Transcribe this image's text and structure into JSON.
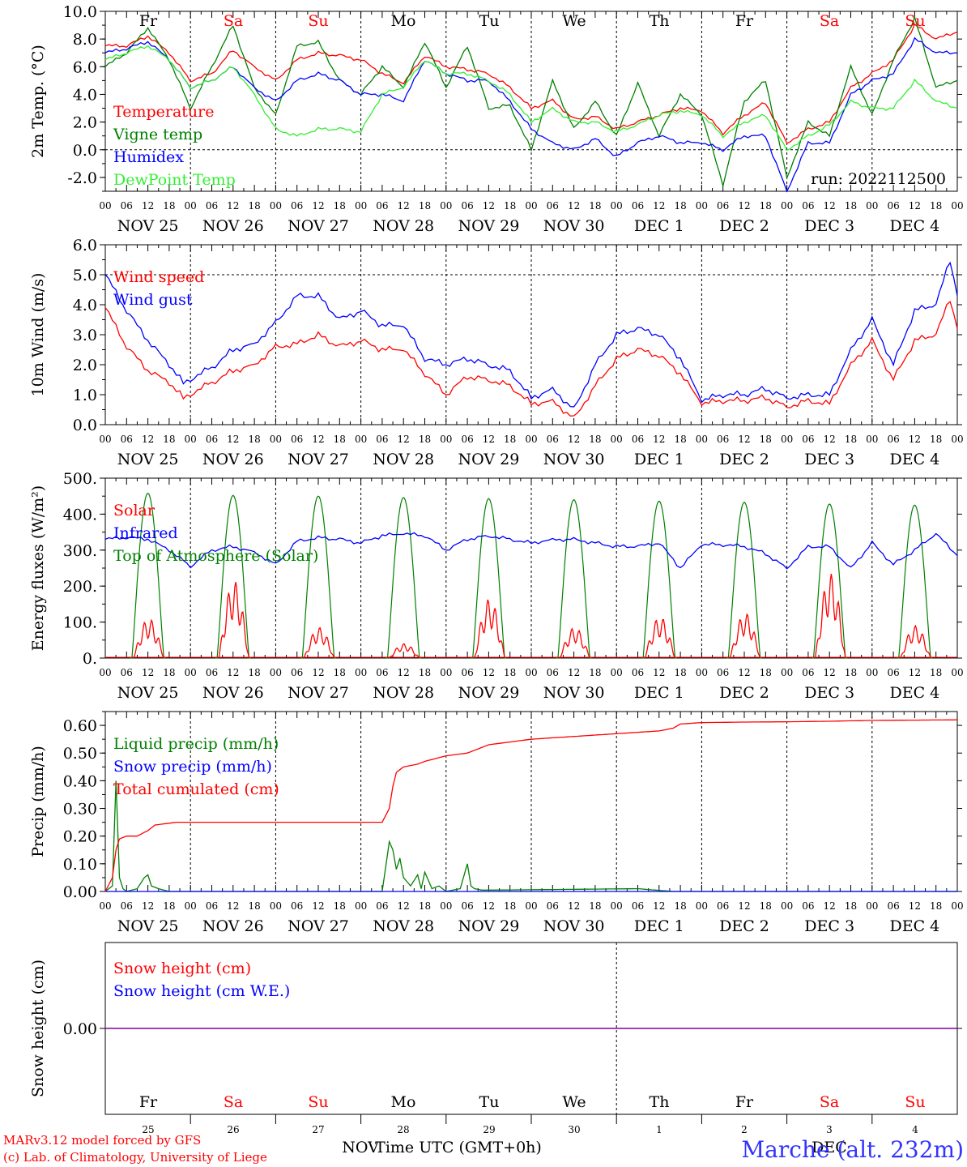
{
  "colors": {
    "red": "#ff0000",
    "green": "#008000",
    "blue": "#0000ff",
    "lightgreen": "#33ee33",
    "purple": "#8000a0",
    "station": "#3333ff",
    "footer": "#ff0000"
  },
  "day_names": [
    "Fr",
    "Sa",
    "Su",
    "Mo",
    "Tu",
    "We",
    "Th",
    "Fr",
    "Sa",
    "Su"
  ],
  "day_name_colors": [
    "#000000",
    "#ff0000",
    "#ff0000",
    "#000000",
    "#000000",
    "#000000",
    "#000000",
    "#000000",
    "#ff0000",
    "#ff0000"
  ],
  "day_labels": [
    "NOV 25",
    "NOV 26",
    "NOV 27",
    "NOV 28",
    "NOV 29",
    "NOV 30",
    "DEC  1",
    "DEC  2",
    "DEC  3",
    "DEC  4"
  ],
  "hour_labels": [
    "00",
    "06",
    "12",
    "18"
  ],
  "last_hour_label": "00",
  "bottom_day_numbers": [
    "25",
    "26",
    "27",
    "28",
    "29",
    "30",
    "1",
    "2",
    "3",
    "4"
  ],
  "bottom_months": [
    "NOV",
    "DEC"
  ],
  "run_label": "run: 2022112500",
  "footer": {
    "model": "MARv3.12 model forced by GFS",
    "lab": "(c) Lab. of Climatology, University of Liege",
    "xlabel": "Time UTC (GMT+0h)",
    "station": "Marche (alt. 232m)"
  },
  "chart_data": [
    {
      "type": "line",
      "ylabel": "2m Temp. (°C)",
      "ylim": [
        -3,
        10
      ],
      "yticks": [
        "-2.0",
        "0.0",
        "2.0",
        "4.0",
        "6.0",
        "8.0",
        "10.0"
      ],
      "ytick_values": [
        -2,
        0,
        2,
        4,
        6,
        8,
        10
      ],
      "x_unit": "hours since 25 Nov 2022 00 UTC",
      "xlim": [
        0,
        240
      ],
      "series": [
        {
          "name": "Temperature",
          "color": "#ff0000",
          "x": [
            0,
            6,
            12,
            18,
            24,
            30,
            36,
            42,
            48,
            54,
            60,
            66,
            72,
            78,
            84,
            90,
            96,
            102,
            108,
            114,
            120,
            126,
            132,
            138,
            144,
            150,
            156,
            162,
            168,
            174,
            180,
            186,
            192,
            198,
            204,
            210,
            216,
            222,
            228,
            234,
            240
          ],
          "y": [
            7.5,
            7.5,
            8.2,
            7.0,
            5.0,
            5.5,
            7.2,
            6.0,
            5.0,
            6.5,
            7.0,
            6.8,
            6.5,
            5.5,
            4.8,
            6.8,
            6.0,
            5.8,
            5.5,
            4.5,
            3.0,
            3.6,
            2.2,
            2.4,
            1.5,
            2.0,
            2.5,
            3.0,
            2.8,
            1.2,
            2.5,
            3.4,
            0.5,
            1.5,
            2.0,
            4.5,
            5.5,
            6.5,
            9.0,
            8.0,
            8.5
          ]
        },
        {
          "name": "Vigne temp",
          "color": "#008000",
          "x": [
            0,
            6,
            12,
            18,
            24,
            30,
            36,
            42,
            48,
            54,
            60,
            66,
            72,
            78,
            84,
            90,
            96,
            102,
            108,
            114,
            120,
            126,
            132,
            138,
            144,
            150,
            156,
            162,
            168,
            174,
            180,
            186,
            192,
            198,
            204,
            210,
            216,
            222,
            228,
            234,
            240
          ],
          "y": [
            6.0,
            7.0,
            8.8,
            6.5,
            3.0,
            6.0,
            9.0,
            4.5,
            2.5,
            7.5,
            7.8,
            5.0,
            4.0,
            6.0,
            4.5,
            7.8,
            4.5,
            7.5,
            3.0,
            3.2,
            0.0,
            5.0,
            1.5,
            3.5,
            1.0,
            4.8,
            1.0,
            4.0,
            2.5,
            -2.5,
            3.5,
            5.0,
            -2.0,
            2.0,
            1.0,
            6.0,
            2.5,
            6.5,
            9.5,
            4.5,
            5.0
          ]
        },
        {
          "name": "Humidex",
          "color": "#0000ff",
          "x": [
            0,
            6,
            12,
            18,
            24,
            30,
            36,
            42,
            48,
            54,
            60,
            66,
            72,
            78,
            84,
            90,
            96,
            102,
            108,
            114,
            120,
            126,
            132,
            138,
            144,
            150,
            156,
            162,
            168,
            174,
            180,
            186,
            192,
            198,
            204,
            210,
            216,
            222,
            228,
            234,
            240
          ],
          "y": [
            7.0,
            7.3,
            7.8,
            6.5,
            4.5,
            5.0,
            6.0,
            4.5,
            3.5,
            5.0,
            5.5,
            5.0,
            4.0,
            4.0,
            3.5,
            6.5,
            5.5,
            5.0,
            5.0,
            3.5,
            1.5,
            0.5,
            0.0,
            0.8,
            -0.5,
            0.5,
            1.0,
            0.5,
            0.5,
            0.0,
            1.0,
            1.0,
            -3.0,
            0.5,
            0.5,
            4.0,
            5.0,
            5.5,
            8.0,
            7.0,
            7.0
          ]
        },
        {
          "name": "DewPoint Temp",
          "color": "#33ee33",
          "x": [
            0,
            6,
            12,
            18,
            24,
            30,
            36,
            42,
            48,
            54,
            60,
            66,
            72,
            78,
            84,
            90,
            96,
            102,
            108,
            114,
            120,
            126,
            132,
            138,
            144,
            150,
            156,
            162,
            168,
            174,
            180,
            186,
            192,
            198,
            204,
            210,
            216,
            222,
            228,
            234,
            240
          ],
          "y": [
            6.5,
            7.0,
            7.5,
            6.5,
            4.5,
            5.0,
            6.0,
            4.0,
            1.5,
            1.0,
            1.5,
            1.5,
            1.3,
            4.0,
            4.5,
            6.5,
            5.5,
            5.5,
            5.0,
            4.0,
            2.0,
            3.0,
            2.0,
            2.0,
            1.3,
            1.8,
            2.5,
            2.8,
            2.5,
            1.0,
            2.0,
            2.5,
            0.0,
            1.0,
            1.8,
            3.5,
            3.0,
            3.0,
            5.0,
            3.5,
            3.0
          ]
        }
      ],
      "text_color": {
        "Temperature": "#ff0000",
        "Vigne temp": "#008000",
        "Humidex": "#0000ff",
        "DewPoint Temp": "#33ee33"
      }
    },
    {
      "type": "line",
      "ylabel": "10m Wind (m/s)",
      "ylim": [
        0,
        6
      ],
      "yticks": [
        "0.0",
        "1.0",
        "2.0",
        "3.0",
        "4.0",
        "5.0",
        "6.0"
      ],
      "ytick_values": [
        0,
        1,
        2,
        3,
        4,
        5,
        6
      ],
      "x_unit": "hours since 25 Nov 2022 00 UTC",
      "xlim": [
        0,
        240
      ],
      "series": [
        {
          "name": "Wind speed",
          "color": "#ff0000",
          "x": [
            0,
            6,
            12,
            18,
            22,
            30,
            36,
            42,
            48,
            54,
            60,
            66,
            72,
            78,
            84,
            90,
            96,
            102,
            108,
            114,
            120,
            126,
            132,
            138,
            144,
            150,
            156,
            162,
            168,
            174,
            180,
            186,
            192,
            198,
            204,
            210,
            216,
            222,
            228,
            234,
            238,
            240
          ],
          "y": [
            3.9,
            2.6,
            1.8,
            1.4,
            0.9,
            1.4,
            1.8,
            2.0,
            2.6,
            2.7,
            3.0,
            2.6,
            2.8,
            2.5,
            2.5,
            1.7,
            1.0,
            1.6,
            1.5,
            1.3,
            0.7,
            0.8,
            0.2,
            1.3,
            2.2,
            2.5,
            2.3,
            1.7,
            0.7,
            0.8,
            0.8,
            0.9,
            0.6,
            0.8,
            0.7,
            2.0,
            2.8,
            1.5,
            2.8,
            3.0,
            4.2,
            3.2
          ]
        },
        {
          "name": "Wind gust",
          "color": "#0000ff",
          "x": [
            0,
            6,
            12,
            18,
            22,
            30,
            36,
            42,
            48,
            54,
            60,
            66,
            72,
            78,
            84,
            90,
            96,
            102,
            108,
            114,
            120,
            126,
            132,
            138,
            144,
            150,
            156,
            162,
            168,
            174,
            180,
            186,
            192,
            198,
            204,
            210,
            216,
            222,
            228,
            234,
            238,
            240
          ],
          "y": [
            5.0,
            3.8,
            2.8,
            2.0,
            1.4,
            1.9,
            2.5,
            2.7,
            3.4,
            4.3,
            4.3,
            3.5,
            3.8,
            3.3,
            3.3,
            2.2,
            2.0,
            2.2,
            2.0,
            1.8,
            0.9,
            1.2,
            0.5,
            2.0,
            3.0,
            3.2,
            3.0,
            2.2,
            0.8,
            1.0,
            1.0,
            1.2,
            0.9,
            1.0,
            1.0,
            2.5,
            3.5,
            2.0,
            3.8,
            4.0,
            5.5,
            4.3
          ]
        }
      ],
      "text_color": {
        "Wind speed": "#ff0000",
        "Wind gust": "#0000ff"
      }
    },
    {
      "type": "line",
      "ylabel": "Energy fluxes (W/m²)",
      "ylim": [
        0,
        500
      ],
      "yticks": [
        "0.",
        "100.",
        "200.",
        "300.",
        "400.",
        "500."
      ],
      "ytick_values": [
        0,
        100,
        200,
        300,
        400,
        500
      ],
      "x_unit": "hours since 25 Nov 2022 00 UTC",
      "xlim": [
        0,
        240
      ],
      "toa_peaks": [
        458,
        452,
        450,
        446,
        443,
        440,
        436,
        433,
        428,
        425
      ],
      "solar_peaks": [
        110,
        215,
        85,
        40,
        165,
        85,
        115,
        125,
        235,
        90
      ],
      "series": [
        {
          "name": "Infrared",
          "color": "#0000ff",
          "x": [
            0,
            6,
            12,
            18,
            24,
            30,
            36,
            42,
            48,
            54,
            60,
            66,
            72,
            78,
            84,
            90,
            96,
            102,
            108,
            114,
            120,
            126,
            132,
            138,
            144,
            150,
            156,
            162,
            168,
            174,
            180,
            186,
            192,
            198,
            204,
            210,
            216,
            222,
            228,
            234,
            240
          ],
          "y": [
            330,
            335,
            330,
            300,
            255,
            300,
            310,
            295,
            260,
            325,
            335,
            330,
            320,
            340,
            345,
            340,
            300,
            330,
            340,
            330,
            320,
            330,
            330,
            320,
            310,
            310,
            320,
            250,
            315,
            315,
            310,
            290,
            250,
            310,
            310,
            250,
            320,
            260,
            300,
            345,
            285
          ]
        }
      ],
      "legend": [
        {
          "name": "Solar",
          "color": "#ff0000"
        },
        {
          "name": "Infrared",
          "color": "#0000ff"
        },
        {
          "name": "Top of Atmosphere (Solar)",
          "color": "#008000"
        }
      ]
    },
    {
      "type": "line",
      "ylabel": "Precip (mm/h)",
      "ylim": [
        0,
        0.65
      ],
      "yticks": [
        "0.00",
        "0.10",
        "0.20",
        "0.30",
        "0.40",
        "0.50",
        "0.60"
      ],
      "ytick_values": [
        0,
        0.1,
        0.2,
        0.3,
        0.4,
        0.5,
        0.6
      ],
      "x_unit": "hours since 25 Nov 2022 00 UTC",
      "xlim": [
        0,
        240
      ],
      "series": [
        {
          "name": "Liquid precip (mm/h)",
          "color": "#008000",
          "x": [
            0,
            2,
            3,
            4,
            5,
            6,
            9,
            11,
            12,
            13,
            15,
            18,
            78,
            80,
            81,
            82,
            83,
            84,
            86,
            88,
            89,
            90,
            92,
            94,
            96,
            100,
            102,
            103,
            104,
            106,
            110,
            150,
            160,
            240
          ],
          "y": [
            0,
            0.02,
            0.4,
            0.05,
            0.01,
            0,
            0.01,
            0.05,
            0.06,
            0.02,
            0.01,
            0,
            0,
            0.18,
            0.15,
            0.08,
            0.12,
            0.05,
            0.02,
            0.06,
            0.01,
            0.07,
            0.01,
            0.02,
            0,
            0.01,
            0.1,
            0.02,
            0.01,
            0.005,
            0.005,
            0.01,
            0,
            0
          ]
        },
        {
          "name": "Snow precip (mm/h)",
          "color": "#0000ff",
          "x": [
            0,
            240
          ],
          "y": [
            0,
            0
          ]
        },
        {
          "name": "Total cumulated (cm)",
          "color": "#ff0000",
          "x": [
            0,
            2,
            3,
            4,
            6,
            9,
            12,
            14,
            20,
            78,
            80,
            81,
            82,
            84,
            88,
            90,
            96,
            102,
            108,
            114,
            120,
            132,
            144,
            156,
            160,
            162,
            168,
            180,
            192,
            204,
            216,
            240
          ],
          "y": [
            0,
            0.05,
            0.15,
            0.19,
            0.2,
            0.2,
            0.22,
            0.24,
            0.25,
            0.25,
            0.3,
            0.38,
            0.43,
            0.45,
            0.46,
            0.47,
            0.49,
            0.5,
            0.53,
            0.54,
            0.55,
            0.56,
            0.57,
            0.58,
            0.59,
            0.605,
            0.61,
            0.612,
            0.613,
            0.615,
            0.618,
            0.62
          ]
        }
      ],
      "text_color": {
        "Liquid precip (mm/h)": "#008000",
        "Snow precip (mm/h)": "#0000ff",
        "Total cumulated (cm)": "#ff0000"
      }
    },
    {
      "type": "line",
      "ylabel": "Snow height (cm)",
      "ylim": [
        -1,
        1
      ],
      "yticks": [
        "0.00"
      ],
      "ytick_values": [
        0
      ],
      "x_unit": "hours since 25 Nov 2022 00 UTC",
      "xlim": [
        0,
        240
      ],
      "series": [
        {
          "name": "Snow height (cm)",
          "color": "#ff0000",
          "x": [
            0,
            240
          ],
          "y": [
            0,
            0
          ]
        },
        {
          "name": "Snow height (cm W.E.)",
          "color": "#0000ff",
          "x": [
            0,
            240
          ],
          "y": [
            0,
            0
          ]
        }
      ],
      "text_color": {
        "Snow height (cm)": "#ff0000",
        "Snow height (cm W.E.)": "#0000ff"
      }
    }
  ]
}
